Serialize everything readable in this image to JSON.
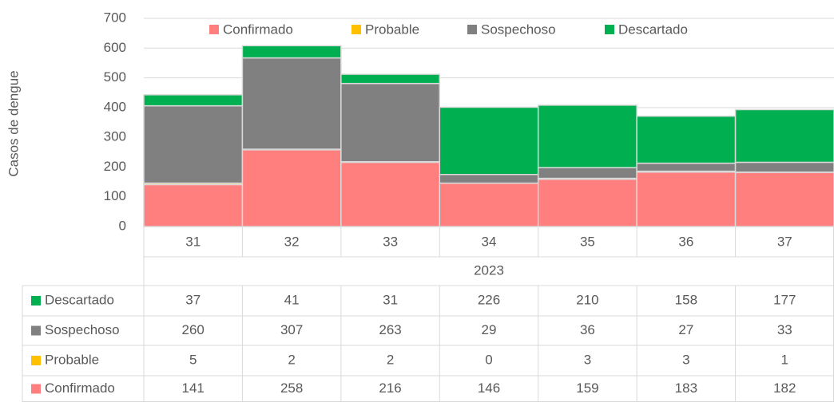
{
  "chart_data": {
    "type": "bar",
    "stacked": true,
    "ylabel": "Casos de dengue",
    "categories": [
      "31",
      "32",
      "33",
      "34",
      "35",
      "36",
      "37"
    ],
    "group_label": "2023",
    "series": [
      {
        "name": "Confirmado",
        "color": "#ff7f7f",
        "values": [
          141,
          258,
          216,
          146,
          159,
          183,
          182
        ]
      },
      {
        "name": "Probable",
        "color": "#ffc000",
        "values": [
          5,
          2,
          2,
          0,
          3,
          3,
          1
        ]
      },
      {
        "name": "Sospechoso",
        "color": "#808080",
        "values": [
          260,
          307,
          263,
          29,
          36,
          27,
          33
        ]
      },
      {
        "name": "Descartado",
        "color": "#00b050",
        "values": [
          37,
          41,
          31,
          226,
          210,
          158,
          177
        ]
      }
    ],
    "ylim": [
      0,
      700
    ],
    "yticks": [
      0,
      100,
      200,
      300,
      400,
      500,
      600,
      700
    ],
    "grid": true
  }
}
